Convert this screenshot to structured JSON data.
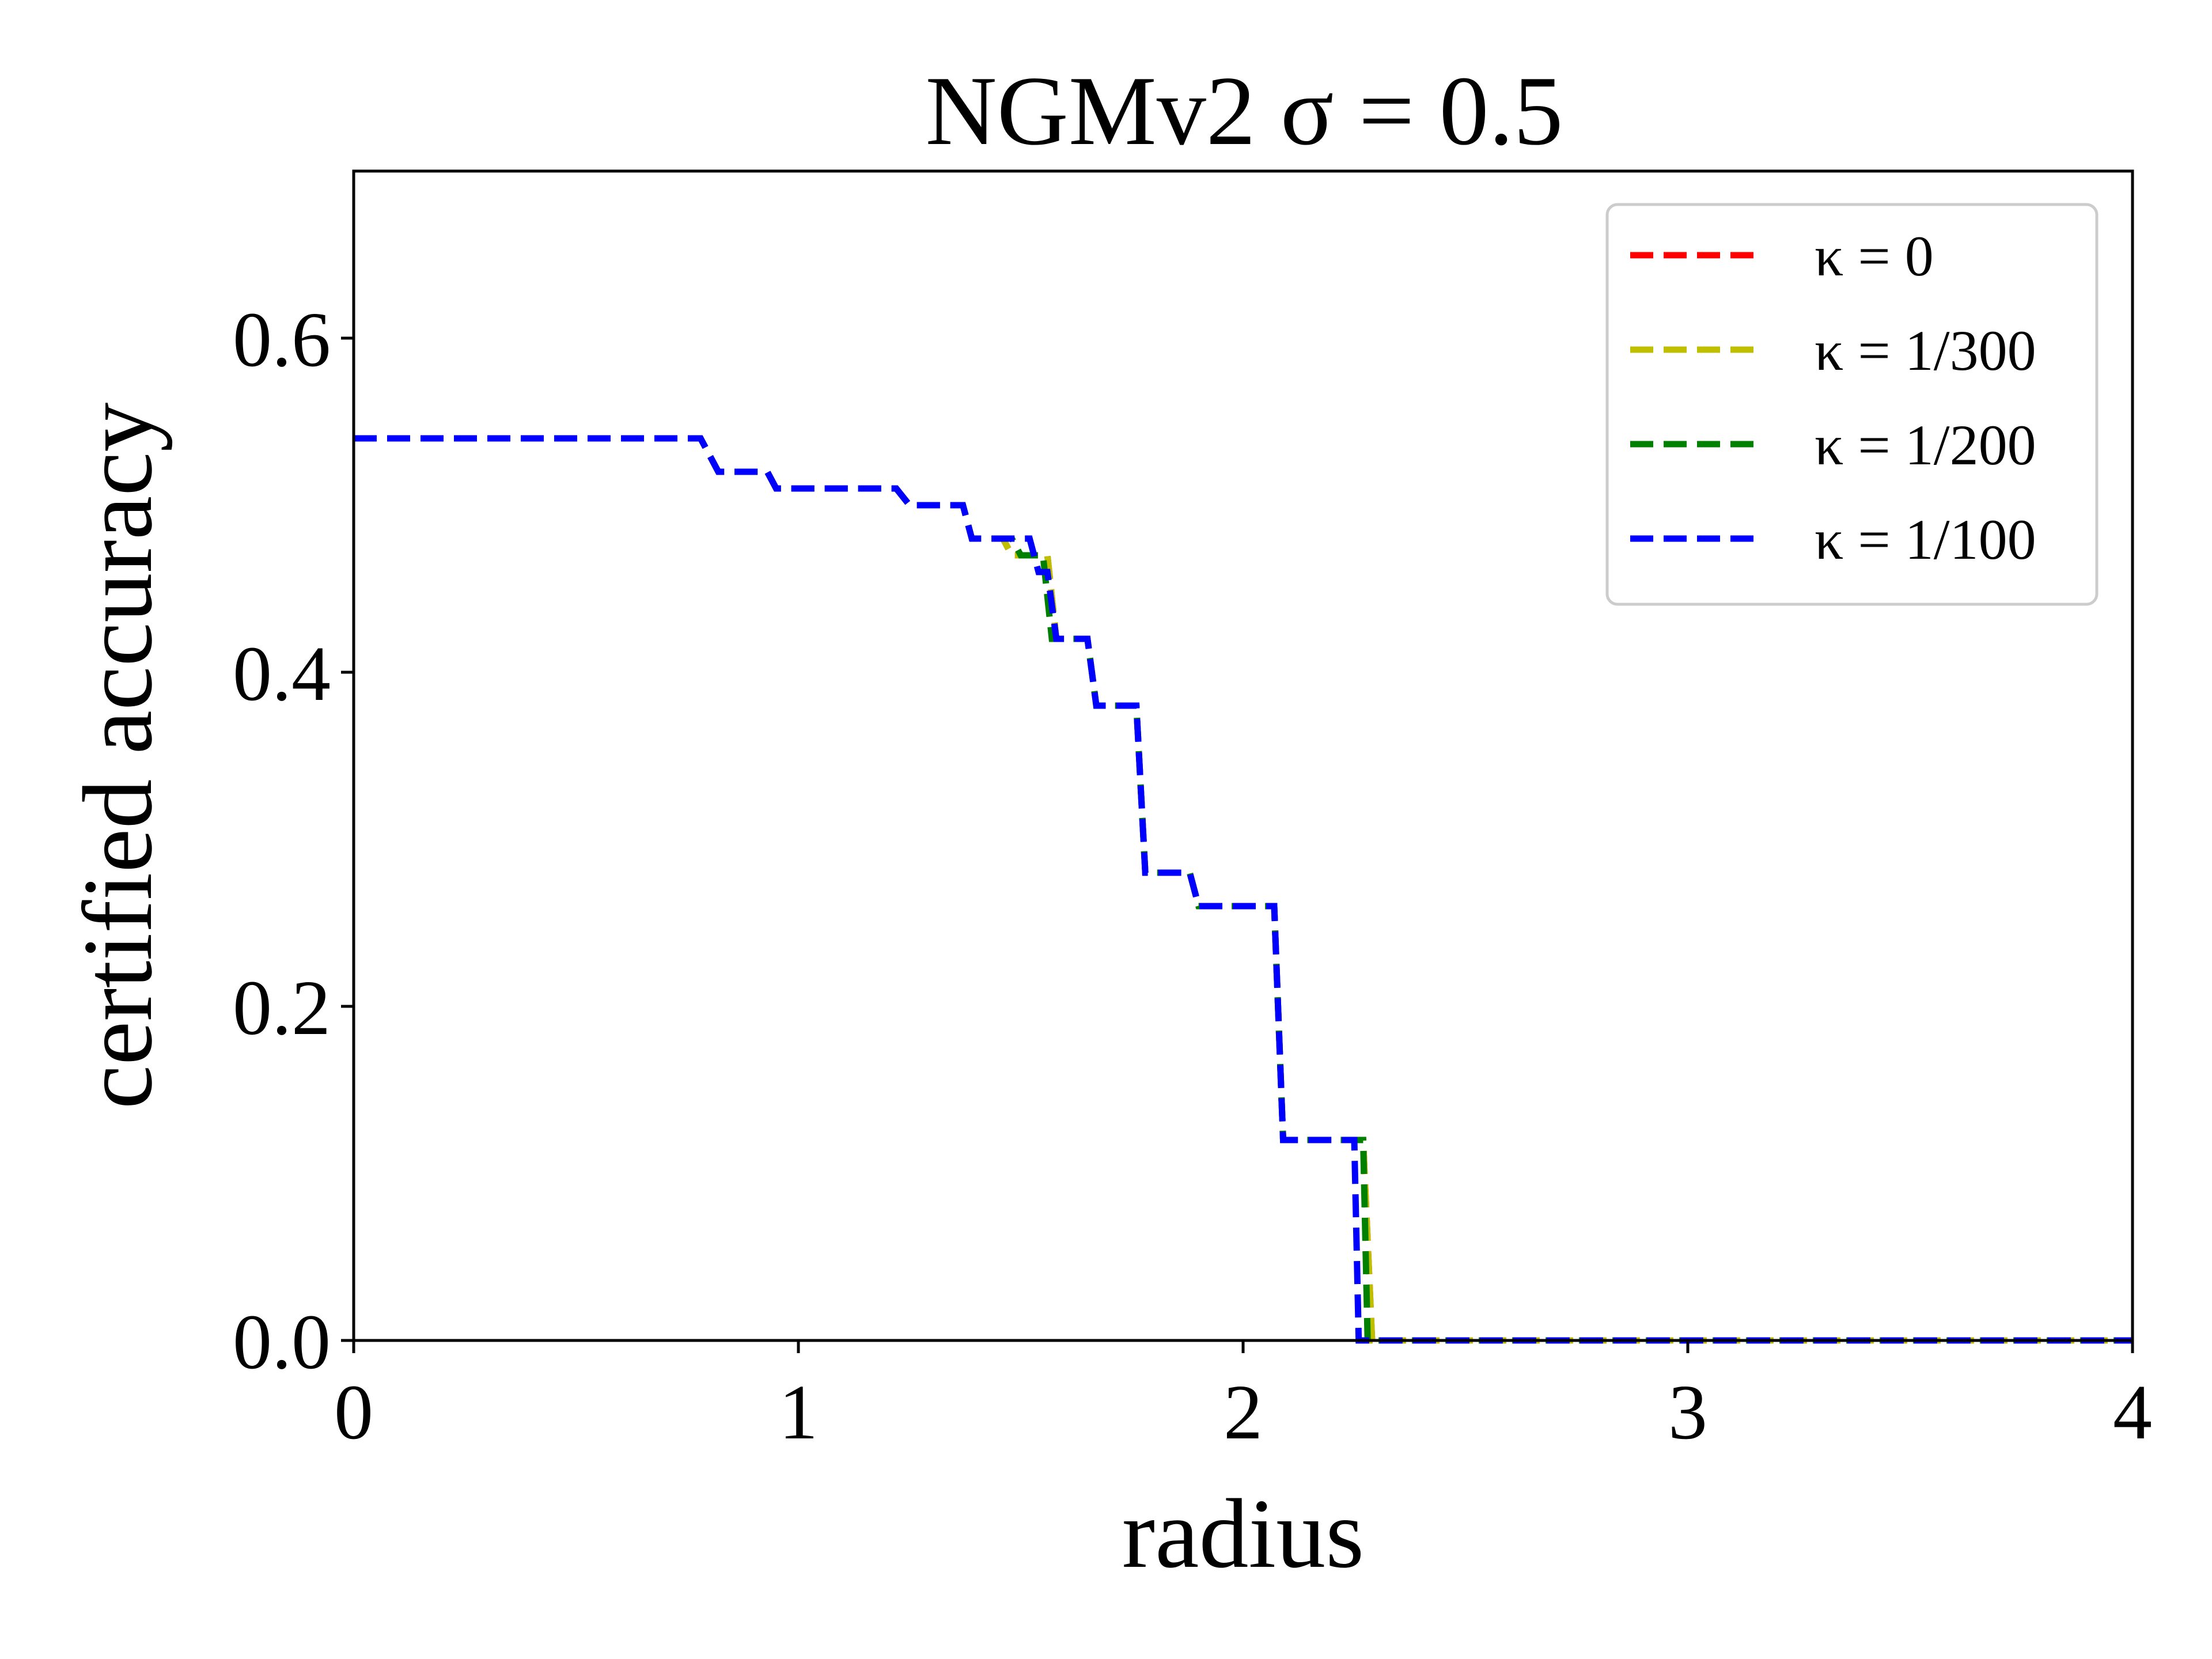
{
  "chart_data": {
    "type": "line",
    "title": "NGMv2 σ = 0.5",
    "xlabel": "radius",
    "ylabel": "certified accuracy",
    "xlim": [
      0,
      4
    ],
    "ylim": [
      0,
      0.7
    ],
    "xticks": [
      "0",
      "1",
      "2",
      "3",
      "4"
    ],
    "yticks": [
      "0.0",
      "0.2",
      "0.4",
      "0.6"
    ],
    "grid": false,
    "legend_position": "top-right",
    "line_style": "dashed",
    "series": [
      {
        "name": "κ = 0",
        "color": "#ff0000",
        "x": [
          0,
          0.78,
          0.82,
          0.93,
          0.95,
          1.22,
          1.25,
          1.37,
          1.39,
          1.46,
          1.48,
          1.56,
          1.58,
          1.65,
          1.67,
          1.76,
          1.78,
          1.88,
          1.9,
          2.07,
          2.09,
          2.27,
          2.29,
          4.0
        ],
        "y": [
          0.54,
          0.54,
          0.52,
          0.52,
          0.51,
          0.51,
          0.5,
          0.5,
          0.48,
          0.48,
          0.47,
          0.47,
          0.42,
          0.42,
          0.38,
          0.38,
          0.28,
          0.28,
          0.26,
          0.26,
          0.12,
          0.12,
          0.0,
          0.0
        ]
      },
      {
        "name": "κ = 1/300",
        "color": "#bfbf00",
        "x": [
          0,
          0.78,
          0.82,
          0.93,
          0.95,
          1.22,
          1.25,
          1.37,
          1.39,
          1.46,
          1.48,
          1.56,
          1.58,
          1.65,
          1.67,
          1.76,
          1.78,
          1.88,
          1.9,
          2.07,
          2.09,
          2.27,
          2.29,
          4.0
        ],
        "y": [
          0.54,
          0.54,
          0.52,
          0.52,
          0.51,
          0.51,
          0.5,
          0.5,
          0.48,
          0.48,
          0.47,
          0.47,
          0.42,
          0.42,
          0.38,
          0.38,
          0.28,
          0.28,
          0.26,
          0.26,
          0.12,
          0.12,
          0.0,
          0.0
        ]
      },
      {
        "name": "κ = 1/200",
        "color": "#008000",
        "x": [
          0,
          0.78,
          0.82,
          0.93,
          0.95,
          1.22,
          1.25,
          1.37,
          1.39,
          1.48,
          1.5,
          1.55,
          1.57,
          1.65,
          1.67,
          1.76,
          1.78,
          1.88,
          1.9,
          2.07,
          2.09,
          2.27,
          2.28,
          4.0
        ],
        "y": [
          0.54,
          0.54,
          0.52,
          0.52,
          0.51,
          0.51,
          0.5,
          0.5,
          0.48,
          0.48,
          0.47,
          0.47,
          0.42,
          0.42,
          0.38,
          0.38,
          0.28,
          0.28,
          0.26,
          0.26,
          0.12,
          0.12,
          0.0,
          0.0
        ]
      },
      {
        "name": "κ = 1/100",
        "color": "#0000ff",
        "x": [
          0,
          0.78,
          0.82,
          0.93,
          0.95,
          1.22,
          1.25,
          1.37,
          1.39,
          1.52,
          1.54,
          1.56,
          1.58,
          1.65,
          1.67,
          1.76,
          1.78,
          1.88,
          1.9,
          2.07,
          2.09,
          2.25,
          2.26,
          4.0
        ],
        "y": [
          0.54,
          0.54,
          0.52,
          0.52,
          0.51,
          0.51,
          0.5,
          0.5,
          0.48,
          0.48,
          0.46,
          0.46,
          0.42,
          0.42,
          0.38,
          0.38,
          0.28,
          0.28,
          0.26,
          0.26,
          0.12,
          0.12,
          0.0,
          0.0
        ]
      }
    ]
  }
}
